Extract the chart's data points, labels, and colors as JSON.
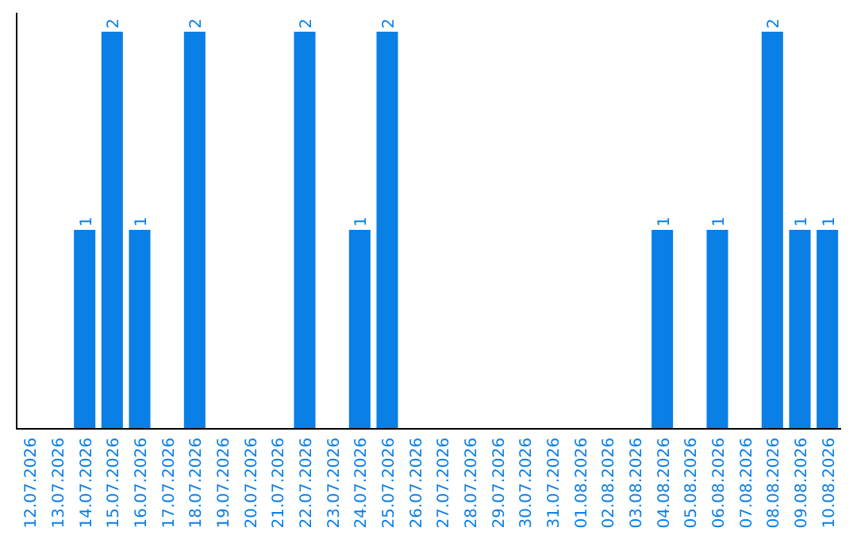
{
  "chart_data": {
    "type": "bar",
    "categories": [
      "12.07.2026",
      "13.07.2026",
      "14.07.2026",
      "15.07.2026",
      "16.07.2026",
      "17.07.2026",
      "18.07.2026",
      "19.07.2026",
      "20.07.2026",
      "21.07.2026",
      "22.07.2026",
      "23.07.2026",
      "24.07.2026",
      "25.07.2026",
      "26.07.2026",
      "27.07.2026",
      "28.07.2026",
      "29.07.2026",
      "30.07.2026",
      "31.07.2026",
      "01.08.2026",
      "02.08.2026",
      "03.08.2026",
      "04.08.2026",
      "05.08.2026",
      "06.08.2026",
      "07.08.2026",
      "08.08.2026",
      "09.08.2026",
      "10.08.2026"
    ],
    "values": [
      0,
      0,
      1,
      2,
      1,
      0,
      2,
      0,
      0,
      0,
      2,
      0,
      1,
      2,
      0,
      0,
      0,
      0,
      0,
      0,
      0,
      0,
      0,
      1,
      0,
      1,
      0,
      2,
      1,
      1
    ],
    "value_labels": [
      null,
      null,
      "1",
      "2",
      "1",
      null,
      "2",
      null,
      null,
      null,
      "2",
      null,
      "1",
      "2",
      null,
      null,
      null,
      null,
      null,
      null,
      null,
      null,
      null,
      "1",
      null,
      "1",
      null,
      "2",
      "1",
      "1"
    ],
    "color": "#0a7fe6",
    "tick_labels": "x"
  }
}
